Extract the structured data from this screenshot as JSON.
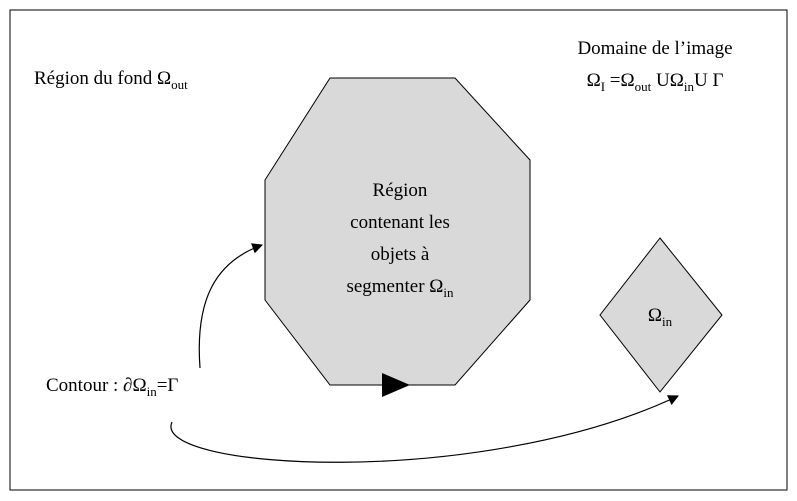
{
  "labels": {
    "background": [
      {
        "text": "Région du fond  Ω"
      },
      {
        "subscript": "out"
      }
    ],
    "domain_title": [
      {
        "text": "Domaine de l’image"
      }
    ],
    "domain_formula": [
      {
        "text": "Ω"
      },
      {
        "subscript": "I"
      },
      {
        "text": " =Ω"
      },
      {
        "subscript": "out"
      },
      {
        "text": " UΩ"
      },
      {
        "subscript": "in"
      },
      {
        "text": "U Γ"
      }
    ],
    "region_lines": [
      [
        {
          "text": "Région"
        }
      ],
      [
        {
          "text": "contenant les"
        }
      ],
      [
        {
          "text": "objets à"
        }
      ],
      [
        {
          "text": "segmenter Ω"
        },
        {
          "subscript": "in"
        }
      ]
    ],
    "diamond": [
      {
        "text": "Ω"
      },
      {
        "subscript": "in"
      }
    ],
    "contour": [
      {
        "text": "Contour : ∂Ω"
      },
      {
        "subscript": "in"
      },
      {
        "text": "=Γ"
      }
    ]
  }
}
